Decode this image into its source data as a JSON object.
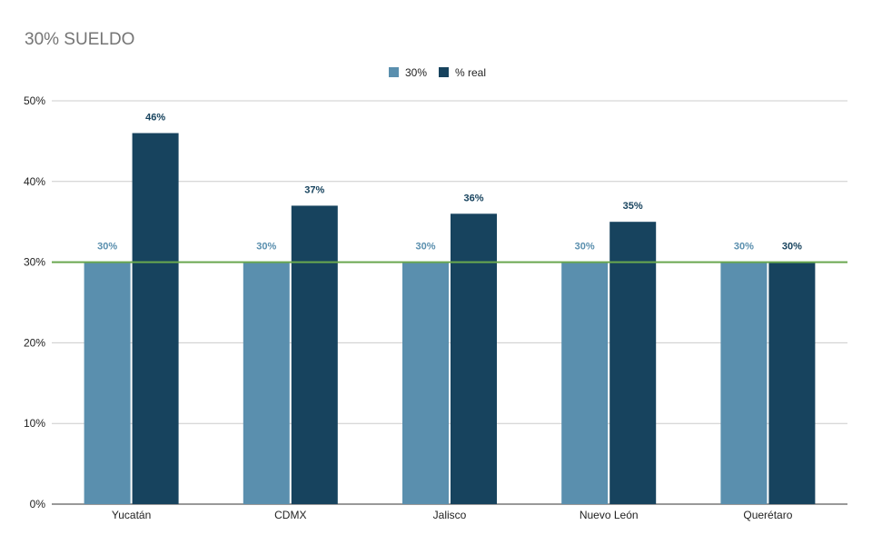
{
  "chart_data": {
    "type": "bar",
    "title": "30% SUELDO",
    "categories": [
      "Yucatán",
      "CDMX",
      "Jalisco",
      "Nuevo León",
      "Querétaro"
    ],
    "series": [
      {
        "name": "30%",
        "values": [
          30,
          30,
          30,
          30,
          30
        ],
        "color": "#5a8fae",
        "labels": [
          "30%",
          "30%",
          "30%",
          "30%",
          "30%"
        ]
      },
      {
        "name": "% real",
        "values": [
          46,
          37,
          36,
          35,
          30
        ],
        "color": "#17435e",
        "labels": [
          "46%",
          "37%",
          "36%",
          "35%",
          "30%"
        ]
      }
    ],
    "yticks": [
      "0%",
      "10%",
      "20%",
      "30%",
      "40%",
      "50%"
    ],
    "ylim": [
      0,
      50
    ],
    "reference_line": {
      "value": 30,
      "color": "#6aa84f"
    },
    "grid": true,
    "legend_position": "top"
  }
}
